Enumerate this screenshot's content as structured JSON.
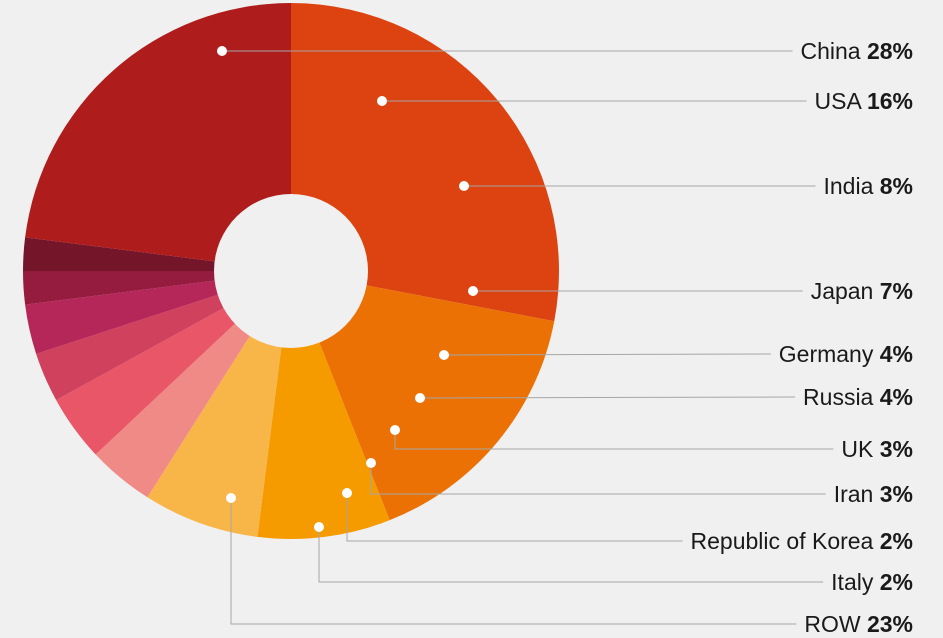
{
  "chart_data": {
    "type": "pie",
    "variant": "donut",
    "categories": [
      "China",
      "USA",
      "India",
      "Japan",
      "Germany",
      "Russia",
      "UK",
      "Iran",
      "Republic of Korea",
      "Italy",
      "ROW"
    ],
    "values": [
      28,
      16,
      8,
      7,
      4,
      4,
      3,
      3,
      2,
      2,
      23
    ],
    "value_labels": [
      "28%",
      "16%",
      "8%",
      "7%",
      "4%",
      "4%",
      "3%",
      "3%",
      "2%",
      "2%",
      "23%"
    ],
    "unit": "%",
    "colors": [
      "#dd4310",
      "#ec7104",
      "#f59b00",
      "#f8b548",
      "#f08a86",
      "#e85667",
      "#d0415d",
      "#b52758",
      "#951c3f",
      "#75152a",
      "#af1c1c"
    ],
    "legend_placement": "right",
    "title": ""
  }
}
